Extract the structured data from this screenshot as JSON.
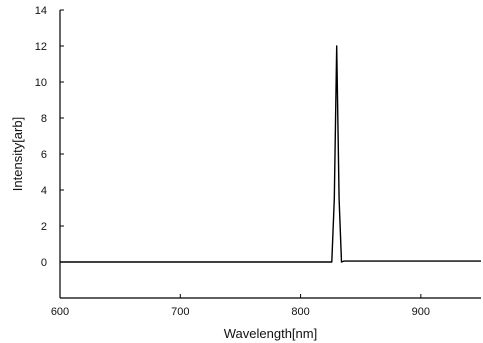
{
  "chart_data": {
    "type": "line",
    "title": "",
    "xlabel": "Wavelength[nm]",
    "ylabel": "Intensity[arb]",
    "xlim": [
      600,
      950
    ],
    "ylim": [
      -2,
      14
    ],
    "xticks": [
      600,
      700,
      800,
      900
    ],
    "yticks": [
      0,
      2,
      4,
      6,
      8,
      10,
      12,
      14
    ],
    "grid": false,
    "series": [
      {
        "x": [
          600,
          826,
          828,
          830,
          832,
          834,
          836,
          950
        ],
        "y": [
          0,
          0,
          3.5,
          12,
          3.5,
          0,
          0.05,
          0.05
        ]
      }
    ]
  },
  "colors": {
    "line": "#000000",
    "axis": "#000000"
  }
}
